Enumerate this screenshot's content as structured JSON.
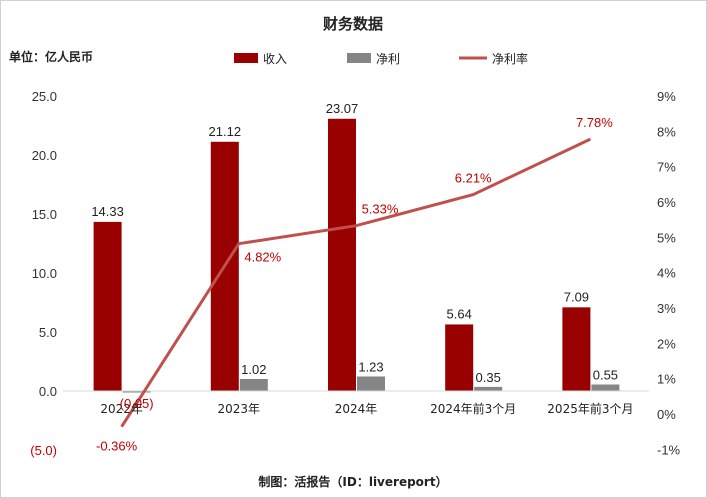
{
  "chart_data": {
    "type": "bar",
    "title": "财务数据",
    "unit_label": "单位：亿人民币",
    "source": "制图：活报告（ID：livereport）",
    "categories": [
      "2022年",
      "2023年",
      "2024年",
      "2024年前3个月",
      "2025年前3个月"
    ],
    "series": [
      {
        "name": "收入",
        "type": "bar",
        "axis": "left",
        "color": "#990000",
        "values": [
          14.33,
          21.12,
          23.07,
          5.64,
          7.09
        ],
        "labels": [
          "14.33",
          "21.12",
          "23.07",
          "5.64",
          "7.09"
        ]
      },
      {
        "name": "净利",
        "type": "bar",
        "axis": "left",
        "color": "#858585",
        "values": [
          -0.05,
          1.02,
          1.23,
          0.35,
          0.55
        ],
        "labels": [
          "(0.05)",
          "1.02",
          "1.23",
          "0.35",
          "0.55"
        ]
      },
      {
        "name": "净利率",
        "type": "line",
        "axis": "right",
        "color": "#c0504d",
        "values": [
          -0.36,
          4.82,
          5.33,
          6.21,
          7.78
        ],
        "labels": [
          "-0.36%",
          "4.82%",
          "5.33%",
          "6.21%",
          "7.78%"
        ]
      }
    ],
    "y_left": {
      "min": -5,
      "max": 25,
      "ticks": [
        -5,
        0,
        5,
        10,
        15,
        20,
        25
      ],
      "tick_labels": [
        "(5.0)",
        "0.0",
        "5.0",
        "10.0",
        "15.0",
        "20.0",
        "25.0"
      ]
    },
    "y_right": {
      "min": -1,
      "max": 9,
      "ticks": [
        -1,
        0,
        1,
        2,
        3,
        4,
        5,
        6,
        7,
        8,
        9
      ],
      "tick_labels": [
        "-1%",
        "0%",
        "1%",
        "2%",
        "3%",
        "4%",
        "5%",
        "6%",
        "7%",
        "8%",
        "9%"
      ]
    },
    "grid": false,
    "legend": "top-center"
  }
}
